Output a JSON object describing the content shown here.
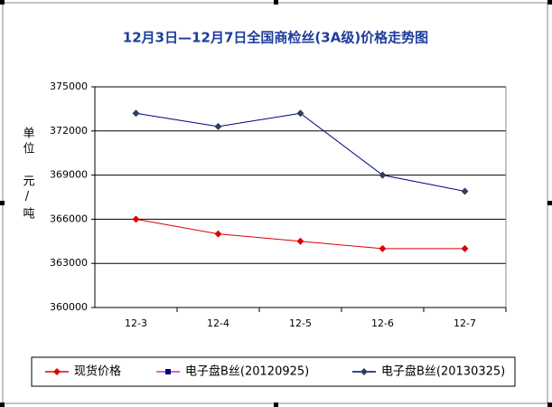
{
  "chart_data": {
    "type": "line",
    "title": "12月3日—12月7日全国商检丝(3A级)价格走势图",
    "y_label": "单位 元/吨",
    "categories": [
      "12-3",
      "12-4",
      "12-5",
      "12-6",
      "12-7"
    ],
    "series": [
      {
        "name": "现货价格",
        "color": "#dd0000",
        "marker": "diamond",
        "marker_color": "#dd0000",
        "values": [
          366000,
          365000,
          364500,
          364000,
          364000
        ]
      },
      {
        "name": "电子盘B丝(20120925)",
        "color": "#cc33cc",
        "marker": "square",
        "marker_color": "#000080",
        "values": [
          null,
          null,
          null,
          null,
          null
        ]
      },
      {
        "name": "电子盘B丝(20130325)",
        "color": "#000080",
        "marker": "diamond",
        "marker_color": "#2f3f5f",
        "values": [
          373200,
          372300,
          373200,
          369000,
          367900
        ]
      }
    ],
    "ylim": [
      360000,
      375000
    ],
    "yticks": [
      360000,
      363000,
      366000,
      369000,
      372000,
      375000
    ],
    "grid": true,
    "legend": "bottom"
  }
}
